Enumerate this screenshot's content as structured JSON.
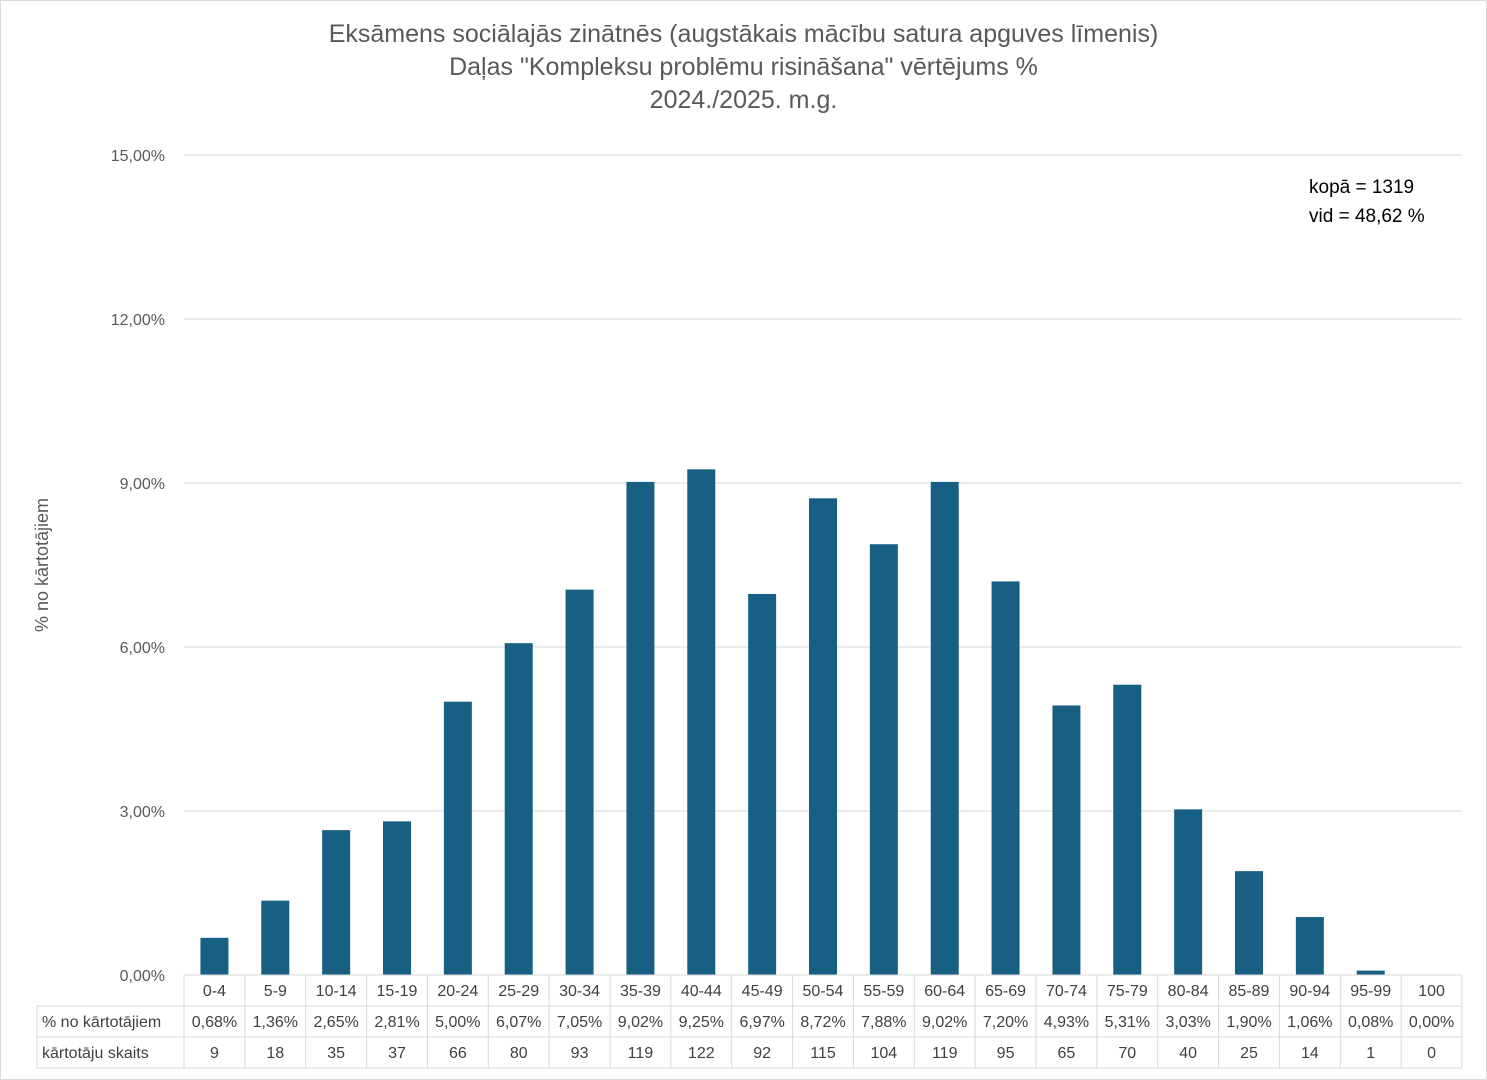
{
  "chart_data": {
    "type": "bar",
    "title_lines": [
      "Eksāmens sociālajās zinātnēs (augstākais mācību satura apguves līmenis)",
      "Daļas \"Kompleksu problēmu risināšana\" vērtējums %",
      "2024./2025. m.g."
    ],
    "ylabel": "% no kārtotājiem",
    "ylim": [
      0,
      15
    ],
    "y_ticks": [
      "0,00%",
      "3,00%",
      "6,00%",
      "9,00%",
      "12,00%",
      "15,00%"
    ],
    "y_tick_values": [
      0,
      3,
      6,
      9,
      12,
      15
    ],
    "grid": true,
    "bar_color": "#175f83",
    "categories": [
      "0-4",
      "5-9",
      "10-14",
      "15-19",
      "20-24",
      "25-29",
      "30-34",
      "35-39",
      "40-44",
      "45-49",
      "50-54",
      "55-59",
      "60-64",
      "65-69",
      "70-74",
      "75-79",
      "80-84",
      "85-89",
      "90-94",
      "95-99",
      "100"
    ],
    "values": [
      0.68,
      1.36,
      2.65,
      2.81,
      5.0,
      6.07,
      7.05,
      9.02,
      9.25,
      6.97,
      8.72,
      7.88,
      9.02,
      7.2,
      4.93,
      5.31,
      3.03,
      1.9,
      1.06,
      0.08,
      0.0
    ],
    "annotation": [
      "kopā = 1319",
      "vid = 48,62 %"
    ],
    "table": {
      "rows": [
        {
          "label": "% no kārtotājiem",
          "cells": [
            "0,68%",
            "1,36%",
            "2,65%",
            "2,81%",
            "5,00%",
            "6,07%",
            "7,05%",
            "9,02%",
            "9,25%",
            "6,97%",
            "8,72%",
            "7,88%",
            "9,02%",
            "7,20%",
            "4,93%",
            "5,31%",
            "3,03%",
            "1,90%",
            "1,06%",
            "0,08%",
            "0,00%"
          ]
        },
        {
          "label": "kārtotāju skaits",
          "cells": [
            "9",
            "18",
            "35",
            "37",
            "66",
            "80",
            "93",
            "119",
            "122",
            "92",
            "115",
            "104",
            "119",
            "95",
            "65",
            "70",
            "40",
            "25",
            "14",
            "1",
            "0"
          ]
        }
      ]
    }
  }
}
